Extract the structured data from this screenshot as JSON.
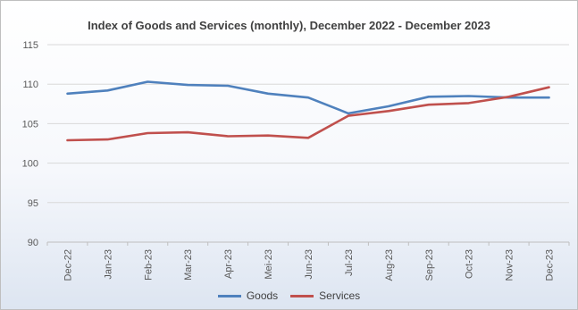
{
  "chart_data": {
    "type": "line",
    "title": "Index of Goods and Services (monthly), December 2022 - December 2023",
    "categories": [
      "Dec-22",
      "Jan-23",
      "Feb-23",
      "Mar-23",
      "Apr-23",
      "Mei-23",
      "Jun-23",
      "Jul-23",
      "Aug-23",
      "Sep-23",
      "Oct-23",
      "Nov-23",
      "Dec-23"
    ],
    "series": [
      {
        "name": "Goods",
        "color": "#4f81bd",
        "values": [
          108.8,
          109.2,
          110.3,
          109.9,
          109.8,
          108.8,
          108.3,
          106.3,
          107.2,
          108.4,
          108.5,
          108.3,
          108.3
        ]
      },
      {
        "name": "Services",
        "color": "#c0504d",
        "values": [
          102.9,
          103.0,
          103.8,
          103.9,
          103.4,
          103.5,
          103.2,
          106.0,
          106.6,
          107.4,
          107.6,
          108.4,
          109.6
        ]
      }
    ],
    "ylim": [
      90,
      115
    ],
    "yticks": [
      90,
      95,
      100,
      105,
      110,
      115
    ],
    "xlabel": "",
    "ylabel": "",
    "grid": true,
    "legend_position": "bottom"
  }
}
